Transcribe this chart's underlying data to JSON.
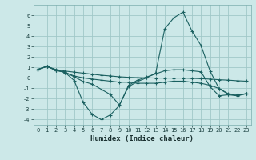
{
  "xlabel": "Humidex (Indice chaleur)",
  "bg_color": "#cce8e8",
  "grid_color": "#a0c8c8",
  "line_color": "#1a6060",
  "xlim": [
    -0.5,
    23.5
  ],
  "ylim": [
    -4.5,
    7.0
  ],
  "xticks": [
    0,
    1,
    2,
    3,
    4,
    5,
    6,
    7,
    8,
    9,
    10,
    11,
    12,
    13,
    14,
    15,
    16,
    17,
    18,
    19,
    20,
    21,
    22,
    23
  ],
  "yticks": [
    -4,
    -3,
    -2,
    -1,
    0,
    1,
    2,
    3,
    4,
    5,
    6
  ],
  "series": [
    {
      "x": [
        0,
        1,
        2,
        3,
        4,
        5,
        6,
        7,
        8,
        9,
        10,
        11,
        12,
        13,
        14,
        15,
        16,
        17,
        18,
        19,
        20,
        21,
        22,
        23
      ],
      "y": [
        0.8,
        1.1,
        0.8,
        0.65,
        0.55,
        0.45,
        0.35,
        0.25,
        0.18,
        0.1,
        0.05,
        0.02,
        0.0,
        -0.02,
        -0.02,
        -0.02,
        -0.02,
        -0.05,
        -0.08,
        -0.12,
        -0.18,
        -0.22,
        -0.28,
        -0.32
      ]
    },
    {
      "x": [
        0,
        1,
        2,
        3,
        4,
        5,
        6,
        7,
        8,
        9,
        10,
        11,
        12,
        13,
        14,
        15,
        16,
        17,
        18,
        19,
        20,
        21,
        22,
        23
      ],
      "y": [
        0.8,
        1.1,
        0.75,
        0.55,
        0.1,
        -0.35,
        -0.6,
        -1.1,
        -1.6,
        -2.6,
        -0.85,
        -0.35,
        0.0,
        0.45,
        4.7,
        5.75,
        6.3,
        4.5,
        3.1,
        0.65,
        -1.05,
        -1.55,
        -1.7,
        -1.5
      ]
    },
    {
      "x": [
        0,
        1,
        2,
        3,
        4,
        5,
        6,
        7,
        8,
        9,
        10,
        11,
        12,
        13,
        14,
        15,
        16,
        17,
        18,
        19,
        20,
        21,
        22,
        23
      ],
      "y": [
        0.8,
        1.1,
        0.72,
        0.52,
        -0.25,
        -2.35,
        -3.5,
        -4.0,
        -3.55,
        -2.65,
        -0.72,
        -0.22,
        0.08,
        0.38,
        0.68,
        0.78,
        0.78,
        0.68,
        0.58,
        -0.85,
        -1.72,
        -1.62,
        -1.72,
        -1.52
      ]
    },
    {
      "x": [
        0,
        1,
        2,
        3,
        4,
        5,
        6,
        7,
        8,
        9,
        10,
        11,
        12,
        13,
        14,
        15,
        16,
        17,
        18,
        19,
        20,
        21,
        22,
        23
      ],
      "y": [
        0.8,
        1.1,
        0.72,
        0.52,
        0.18,
        0.0,
        -0.12,
        -0.22,
        -0.32,
        -0.42,
        -0.42,
        -0.52,
        -0.52,
        -0.52,
        -0.42,
        -0.32,
        -0.32,
        -0.42,
        -0.52,
        -0.72,
        -1.02,
        -1.52,
        -1.62,
        -1.52
      ]
    }
  ]
}
